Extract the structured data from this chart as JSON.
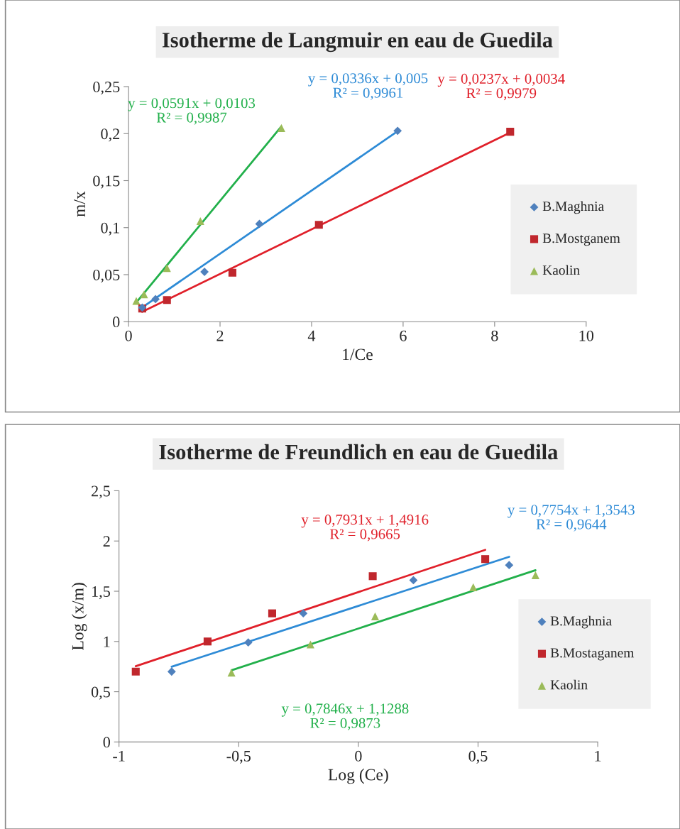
{
  "chart_data": [
    {
      "type": "scatter",
      "title": "Isotherme de Langmuir en eau de Guedila",
      "xlabel": "1/Ce",
      "ylabel": "m/x",
      "xlim": [
        0,
        10
      ],
      "ylim": [
        0,
        0.25
      ],
      "xticks": [
        0,
        2,
        4,
        6,
        8,
        10
      ],
      "yticks": [
        0,
        {
          "value": 0.05,
          "label": "0,05"
        },
        {
          "value": 0.1,
          "label": "0,1"
        },
        {
          "value": 0.15,
          "label": "0,15"
        },
        {
          "value": 0.2,
          "label": "0,2"
        },
        {
          "value": 0.25,
          "label": "0,25"
        }
      ],
      "grid": false,
      "legend": "right",
      "series": [
        {
          "name": "B.Maghnia",
          "color": "#4f81bd",
          "marker": "diamond",
          "x": [
            0.3,
            0.59,
            1.66,
            2.86,
            5.88
          ],
          "values": [
            0.015,
            0.024,
            0.053,
            0.104,
            0.203
          ]
        },
        {
          "name": "B.Mostganem",
          "color": "#c0272d",
          "marker": "square",
          "x": [
            0.3,
            0.84,
            2.27,
            4.16,
            8.34
          ],
          "values": [
            0.014,
            0.023,
            0.052,
            0.103,
            0.202
          ]
        },
        {
          "name": "Kaolin",
          "color": "#9bbb59",
          "marker": "triangle",
          "x": [
            0.17,
            0.34,
            0.84,
            1.57,
            3.34
          ],
          "values": [
            0.022,
            0.029,
            0.057,
            0.107,
            0.206
          ]
        },
        {
          "type": "line",
          "color": "#2e8bd6",
          "marker": "none",
          "x": [
            0.3,
            5.88
          ],
          "values": [
            0.0151,
            0.2026
          ]
        },
        {
          "type": "line",
          "color": "#e0202a",
          "marker": "none",
          "x": [
            0.3,
            8.34
          ],
          "values": [
            0.0105,
            0.2011
          ]
        },
        {
          "type": "line",
          "color": "#22b04b",
          "marker": "none",
          "x": [
            0.17,
            3.34
          ],
          "values": [
            0.0204,
            0.2077
          ]
        }
      ],
      "annotations": [
        "y = 0,0336x + 0,005\nR² = 0,9961",
        "y = 0,0237x + 0,0034\nR² = 0,9979",
        "y = 0,0591x + 0,0103\nR² = 0,9987"
      ]
    },
    {
      "type": "scatter",
      "title": "Isotherme de Freundlich en eau de Guedila",
      "xlabel": "Log (Ce)",
      "ylabel": "Log (x/m)",
      "xlim": [
        -1,
        1
      ],
      "ylim": [
        0,
        2.5
      ],
      "xticks": [
        -1,
        {
          "value": -0.5,
          "label": "-0,5"
        },
        0,
        {
          "value": 0.5,
          "label": "0,5"
        },
        1
      ],
      "yticks": [
        0,
        {
          "value": 0.5,
          "label": "0,5"
        },
        1,
        {
          "value": 1.5,
          "label": "1,5"
        },
        2,
        {
          "value": 2.5,
          "label": "2,5"
        }
      ],
      "grid": false,
      "legend": "right",
      "series": [
        {
          "name": "B.Maghnia",
          "color": "#4f81bd",
          "marker": "diamond",
          "x": [
            -0.78,
            -0.46,
            -0.23,
            0.23,
            0.63
          ],
          "values": [
            0.7,
            0.99,
            1.28,
            1.61,
            1.76
          ]
        },
        {
          "name": "B.Mostaganem",
          "color": "#c0272d",
          "marker": "square",
          "x": [
            -0.93,
            -0.63,
            -0.36,
            0.06,
            0.53
          ],
          "values": [
            0.7,
            1.0,
            1.28,
            1.65,
            1.82
          ]
        },
        {
          "name": "Kaolin",
          "color": "#9bbb59",
          "marker": "triangle",
          "x": [
            -0.53,
            -0.2,
            0.07,
            0.48,
            0.74
          ],
          "values": [
            0.69,
            0.97,
            1.25,
            1.54,
            1.66
          ]
        },
        {
          "type": "line",
          "color": "#2e8bd6",
          "marker": "none",
          "x": [
            -0.78,
            0.63
          ],
          "values": [
            0.749,
            1.843
          ]
        },
        {
          "type": "line",
          "color": "#e0202a",
          "marker": "none",
          "x": [
            -0.93,
            0.53
          ],
          "values": [
            0.754,
            1.912
          ]
        },
        {
          "type": "line",
          "color": "#22b04b",
          "marker": "none",
          "x": [
            -0.53,
            0.74
          ],
          "values": [
            0.713,
            1.709
          ]
        }
      ],
      "annotations": [
        "y = 0,7754x + 1,3543\nR² = 0,9644",
        "y = 0,7931x + 1,4916\nR² = 0,9665",
        "y = 0,7846x + 1,1288\nR² = 0,9873"
      ]
    }
  ]
}
